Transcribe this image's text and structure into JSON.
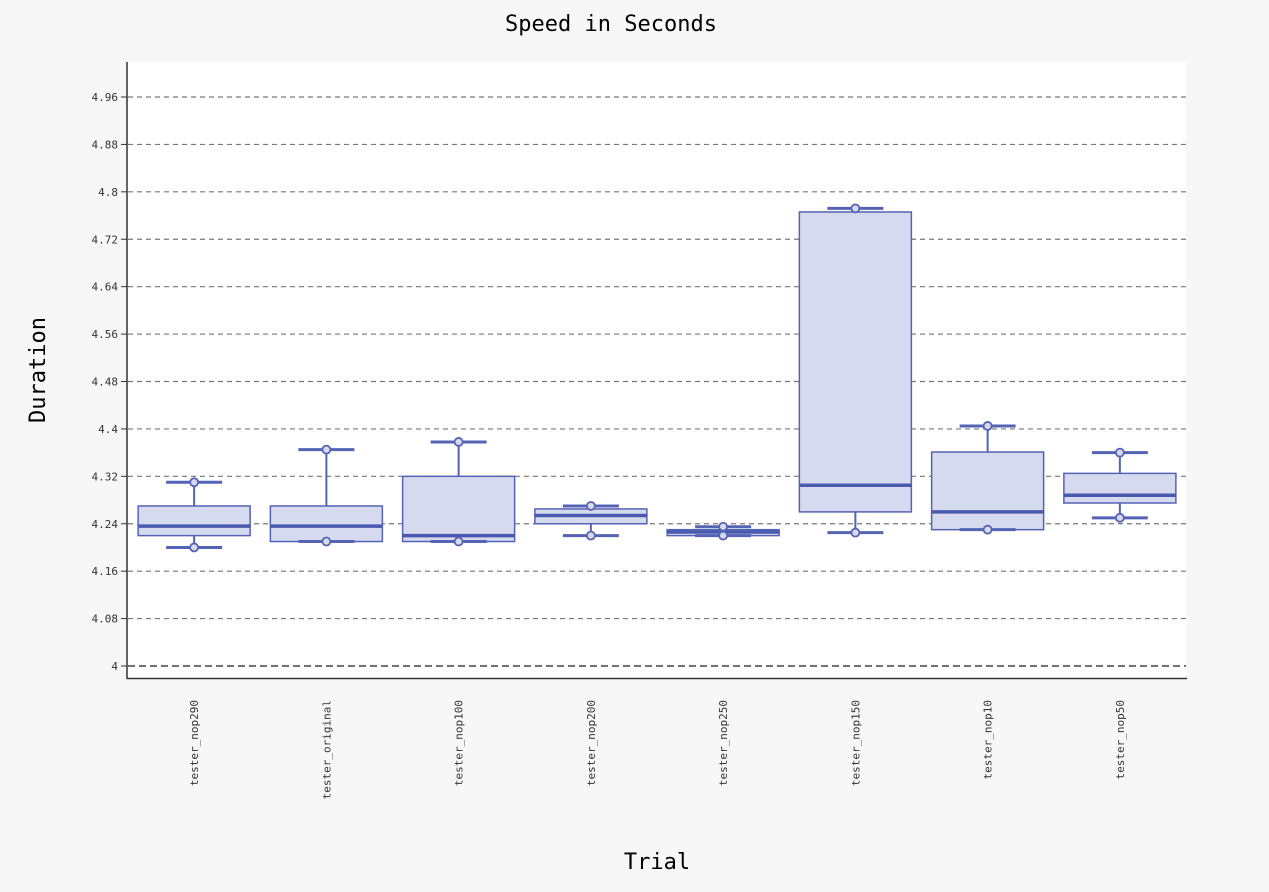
{
  "chart_data": {
    "type": "box",
    "title": "Speed in Seconds",
    "xlabel": "Trial",
    "ylabel": "Duration",
    "ylim": [
      3.98,
      5.02
    ],
    "yticks": [
      "4",
      "4.08",
      "4.16",
      "4.24",
      "4.32",
      "4.4",
      "4.48",
      "4.56",
      "4.64",
      "4.72",
      "4.8",
      "4.88",
      "4.96"
    ],
    "grid": true,
    "colors": {
      "fill": "#d5daee",
      "stroke": "#5563b5",
      "median": "#4a59b0",
      "grid": "#777777",
      "plot_bg": "#ffffff"
    },
    "boxes": [
      {
        "name": "tester_nop290",
        "min": 4.2,
        "q1": 4.22,
        "median": 4.236,
        "q3": 4.27,
        "max": 4.31
      },
      {
        "name": "tester_original",
        "min": 4.21,
        "q1": 4.21,
        "median": 4.236,
        "q3": 4.27,
        "max": 4.365
      },
      {
        "name": "tester_nop100",
        "min": 4.21,
        "q1": 4.21,
        "median": 4.22,
        "q3": 4.32,
        "max": 4.378
      },
      {
        "name": "tester_nop200",
        "min": 4.22,
        "q1": 4.24,
        "median": 4.254,
        "q3": 4.265,
        "max": 4.27
      },
      {
        "name": "tester_nop250",
        "min": 4.22,
        "q1": 4.22,
        "median": 4.226,
        "q3": 4.23,
        "max": 4.235
      },
      {
        "name": "tester_nop150",
        "min": 4.225,
        "q1": 4.26,
        "median": 4.305,
        "q3": 4.766,
        "max": 4.772
      },
      {
        "name": "tester_nop10",
        "min": 4.23,
        "q1": 4.23,
        "median": 4.26,
        "q3": 4.361,
        "max": 4.405
      },
      {
        "name": "tester_nop50",
        "min": 4.25,
        "q1": 4.275,
        "median": 4.288,
        "q3": 4.325,
        "max": 4.36
      }
    ]
  }
}
